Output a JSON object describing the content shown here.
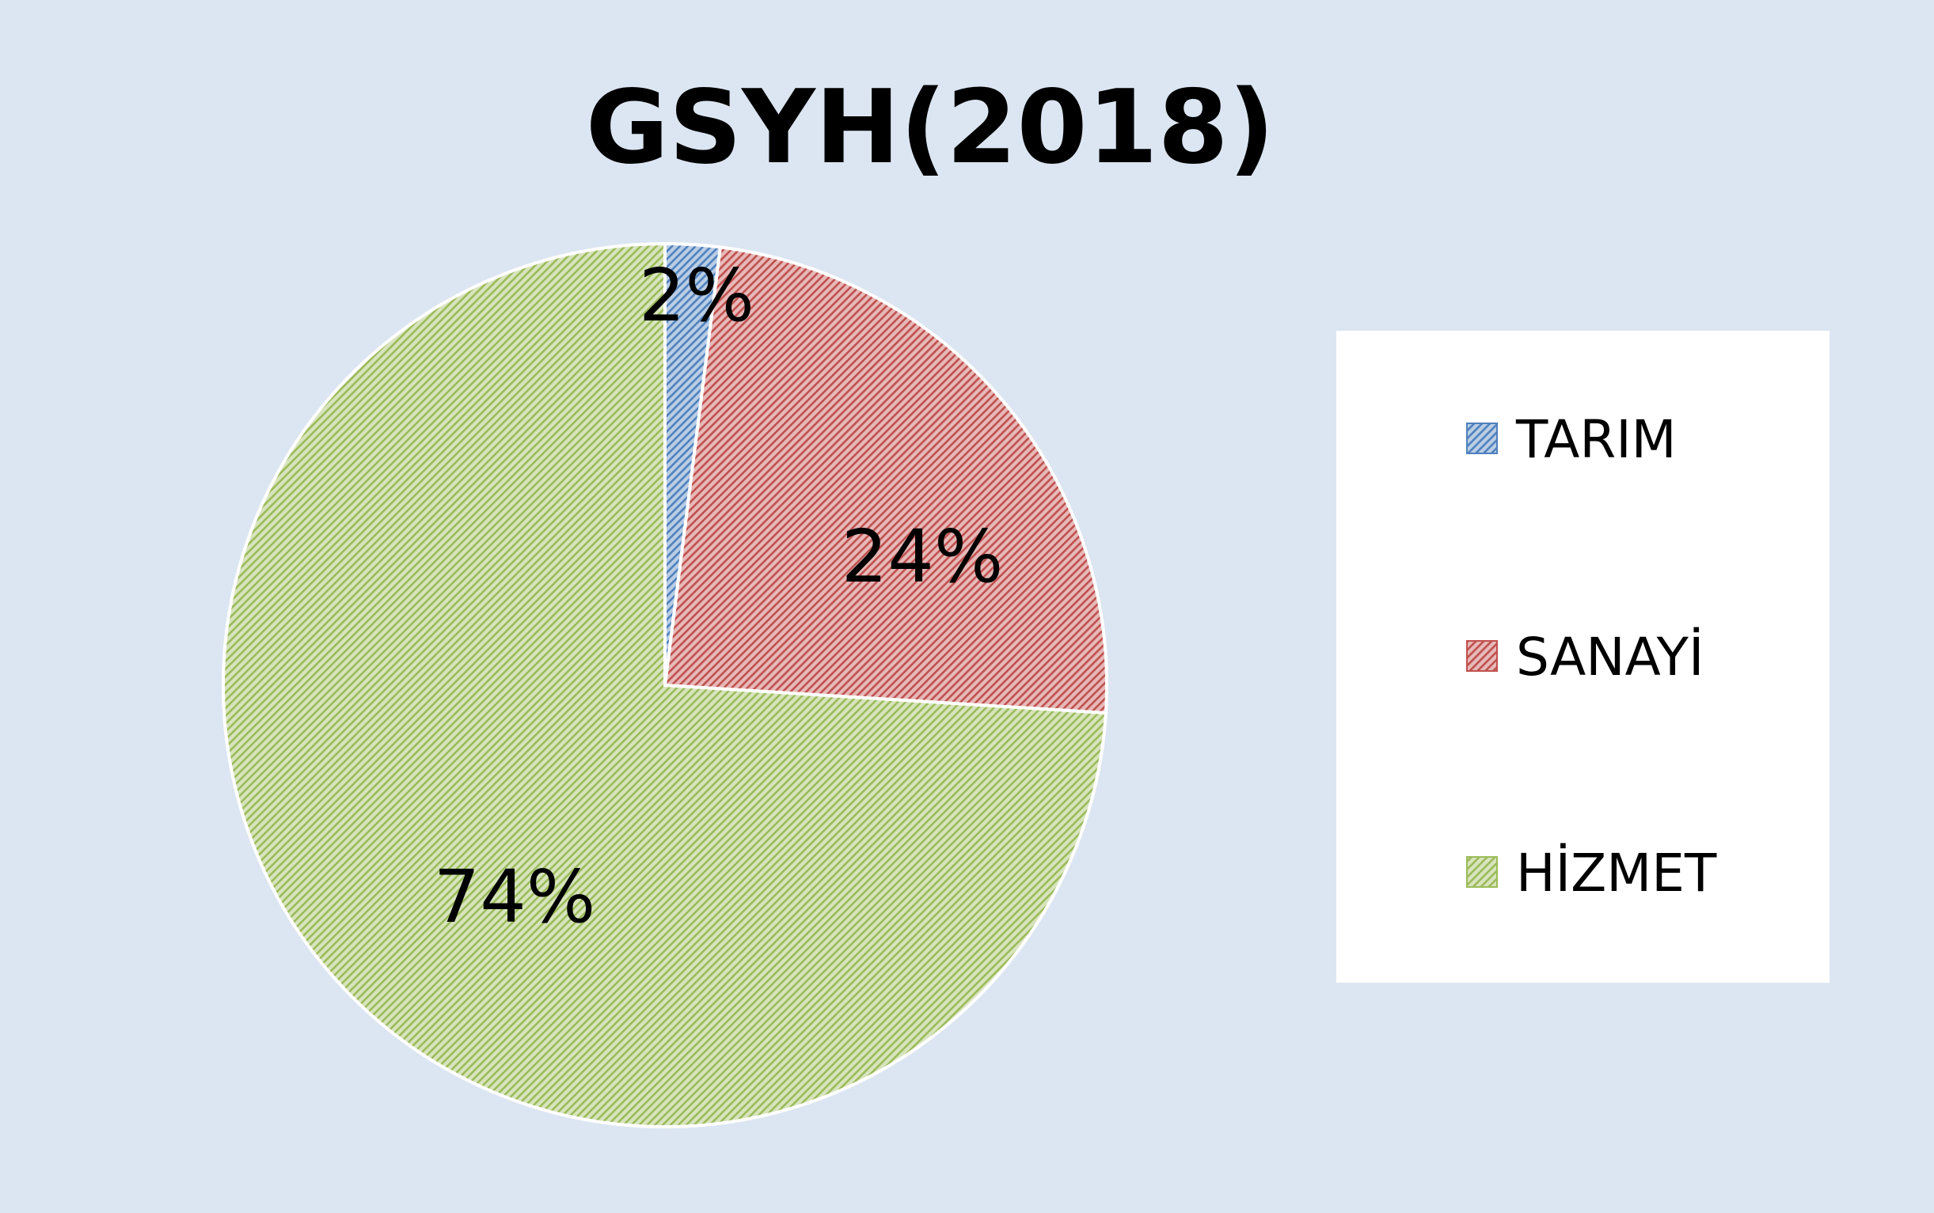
{
  "chart_data": {
    "type": "pie",
    "title": "GSYH(2018)",
    "categories": [
      "TARIM",
      "SANAYİ",
      "HİZMET"
    ],
    "values": [
      2,
      24,
      74
    ],
    "labels": [
      "2%",
      "24%",
      "74%"
    ],
    "colors": [
      "#4f81bd",
      "#c0504d",
      "#9bbb59"
    ],
    "fill_colors": [
      "#b9cde5",
      "#e6b9b8",
      "#d7e4bd"
    ],
    "start_angle_deg": 0,
    "direction": "clockwise",
    "legend": "right",
    "background": "#dce6f2"
  }
}
